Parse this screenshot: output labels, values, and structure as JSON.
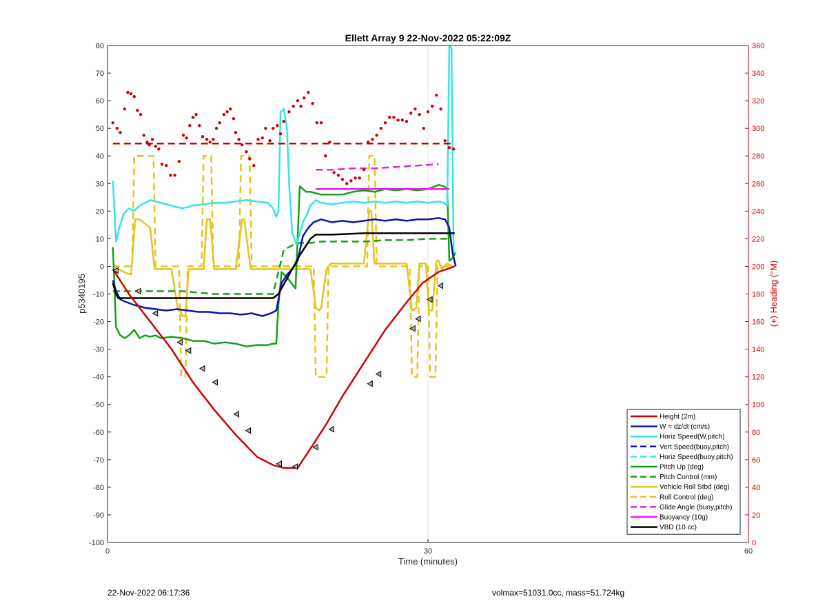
{
  "footer": {
    "date": "22-Nov-2022 06:17:36",
    "info": "volmax=51031.0cc, mass=51.724kg"
  },
  "colors": {
    "red": "#cc0000",
    "blue": "#0a14b4",
    "cyan": "#32e6e6",
    "green": "#14a014",
    "yellow": "#e6c31e",
    "magenta": "#e61ee6",
    "black": "#000000"
  },
  "chart_data": {
    "type": "line",
    "title": "Ellett Array 9 22-Nov-2022 05:22:09Z",
    "xlabel": "Time (minutes)",
    "ylabel": "p5340195",
    "y2label": "(+) Heading (°M)",
    "xlim": [
      0,
      60
    ],
    "ylim": [
      -100,
      80
    ],
    "y2lim": [
      0,
      360
    ],
    "xticks": [
      0,
      30,
      60
    ],
    "yticks": [
      80,
      70,
      60,
      50,
      40,
      30,
      20,
      10,
      0,
      -10,
      -20,
      -30,
      -40,
      -50,
      -60,
      -70,
      -80,
      -90,
      -100
    ],
    "y2ticks": [
      360,
      340,
      320,
      300,
      280,
      260,
      240,
      220,
      200,
      180,
      160,
      140,
      120,
      100,
      80,
      60,
      40,
      20,
      0
    ],
    "grid": "x only",
    "legend_position": "lower-right",
    "legend": [
      "Height (2m)",
      "W = dz/dt (cm/s)",
      "Horiz Speed(W,pitch)",
      "Vert Speed(buoy,pitch)",
      "Horiz Speed(buoy,pitch)",
      "Pitch Up (deg)",
      "Pitch Control (mm)",
      "Vehicle Roll Stbd (deg)",
      "Roll Control (deg)",
      "Glide Angle (buoy,pitch)",
      "Buoyancy (10g)",
      "VBD (10 cc)"
    ],
    "series": [
      {
        "name": "Height (2m)",
        "color": "red",
        "style": "solid",
        "x": [
          0.5,
          2,
          4,
          6,
          7,
          8,
          10,
          12,
          14,
          15.5,
          16.5,
          17.8,
          19,
          20.5,
          22,
          24,
          26,
          28,
          29.5,
          31,
          32.5
        ],
        "y": [
          -1,
          -10,
          -20,
          -30,
          -36,
          -42,
          -52,
          -61,
          -69,
          -72,
          -73,
          -73,
          -66,
          -57,
          -47,
          -35,
          -23,
          -13,
          -6,
          -2,
          0
        ]
      },
      {
        "name": "Height markers",
        "color": "red",
        "style": "markers",
        "x": [
          0.8,
          2.9,
          4.5,
          6.8,
          7.6,
          8.9,
          10.1,
          12.1,
          13.2,
          16.1,
          17.6,
          19.5,
          21,
          24.6,
          25.4,
          28.6,
          29.1,
          30.2,
          31.2
        ],
        "y": [
          -1.5,
          -9,
          -17,
          -27.5,
          -30.5,
          -37,
          -42,
          -53.5,
          -59.5,
          -71.5,
          -72.5,
          -65.5,
          -59,
          -42.5,
          -39,
          -22.5,
          -19,
          -12,
          -7
        ]
      },
      {
        "name": "Heading (°M)",
        "axis": "right",
        "color": "red",
        "style": "dots",
        "x": [
          0.5,
          0.9,
          1.2,
          1.6,
          1.9,
          2.2,
          2.5,
          2.8,
          3.1,
          3.4,
          3.7,
          3.9,
          4.2,
          4.5,
          4.8,
          5.1,
          5.5,
          5.9,
          6.3,
          6.7,
          7.1,
          7.4,
          7.7,
          8.0,
          8.3,
          8.6,
          8.9,
          9.3,
          9.6,
          9.9,
          10.2,
          10.5,
          10.9,
          11.2,
          11.5,
          11.8,
          12.0,
          12.3,
          12.6,
          13.0,
          13.3,
          13.7,
          14.1,
          14.5,
          14.8,
          15.2,
          15.5,
          15.9,
          16.2,
          16.5,
          17.0,
          17.4,
          17.8,
          18.1,
          18.4,
          18.8,
          19.2,
          19.6,
          20.0,
          20.4,
          20.8,
          21.2,
          21.6,
          22.0,
          22.4,
          22.8,
          23.2,
          23.6,
          24.0,
          24.4,
          24.8,
          25.2,
          25.6,
          26.0,
          26.4,
          26.8,
          27.2,
          27.6,
          28.0,
          28.4,
          28.8,
          29.2,
          29.6,
          30.0,
          30.4,
          30.8,
          31.2,
          31.6,
          32.0,
          32.4
        ],
        "y": [
          304,
          300,
          297,
          314,
          326,
          325,
          323,
          313,
          310,
          295,
          290,
          288,
          292,
          287,
          285,
          274,
          273,
          266,
          266,
          276,
          295,
          293,
          302,
          308,
          310,
          302,
          294,
          292,
          290,
          292,
          300,
          304,
          310,
          312,
          314,
          307,
          297,
          292,
          288,
          283,
          278,
          273,
          292,
          293,
          300,
          291,
          300,
          302,
          296,
          305,
          312,
          316,
          320,
          316,
          322,
          326,
          318,
          304,
          304,
          280,
          290,
          268,
          266,
          263,
          260,
          262,
          264,
          264,
          270,
          290,
          292,
          295,
          300,
          304,
          308,
          308,
          306,
          306,
          305,
          311,
          314,
          310,
          300,
          312,
          316,
          324,
          314,
          291,
          286,
          285
        ]
      },
      {
        "name": "Mean Heading",
        "axis": "right",
        "color": "red",
        "style": "dashed",
        "x": [
          0.5,
          32.5
        ],
        "y": [
          289,
          289
        ]
      },
      {
        "name": "W = dz/dt (cm/s)",
        "color": "blue",
        "style": "solid",
        "x": [
          0.5,
          0.8,
          1.2,
          1.8,
          2.5,
          3.5,
          4.5,
          5.5,
          6.5,
          7.5,
          8.5,
          9.5,
          10.5,
          11.5,
          12.5,
          13.5,
          14.5,
          15.3,
          15.8,
          16.3,
          16.8,
          17.3,
          17.8,
          18.3,
          18.8,
          19.3,
          20.0,
          21.0,
          22.0,
          23.0,
          24.0,
          25.0,
          26.0,
          27.0,
          28.0,
          29.0,
          30.0,
          31.0,
          31.6,
          32.0,
          32.3,
          32.6
        ],
        "y": [
          -5,
          -9,
          -12,
          -13,
          -14,
          -15,
          -15.5,
          -16,
          -15.5,
          -16,
          -16.5,
          -16.5,
          -17,
          -17,
          -17.5,
          -17,
          -18,
          -17,
          -16,
          -6,
          -3,
          -1,
          2,
          11,
          14,
          16,
          17,
          16,
          16.5,
          16,
          16.5,
          17,
          16.5,
          17,
          16.5,
          17,
          17,
          17.5,
          17,
          14,
          5,
          0
        ]
      },
      {
        "name": "Horiz Speed(W,pitch)",
        "color": "cyan",
        "style": "solid",
        "x": [
          0.5,
          0.8,
          1.1,
          1.5,
          2.0,
          2.5,
          3.0,
          3.5,
          4.0,
          5.0,
          6.0,
          7.0,
          8.0,
          9.0,
          10.0,
          11.0,
          12.0,
          13.0,
          14.0,
          15.0,
          15.5,
          15.8,
          16.0,
          16.2,
          16.5,
          16.8,
          17.0,
          17.3,
          17.7,
          18.0,
          18.3,
          18.7,
          19.0,
          19.5,
          20.0,
          21.0,
          22.0,
          23.0,
          24.0,
          25.0,
          26.0,
          27.0,
          28.0,
          29.0,
          30.0,
          31.0,
          31.5,
          31.8,
          32.0,
          32.2,
          32.4,
          32.6
        ],
        "y": [
          31,
          9,
          14,
          19,
          21,
          20,
          22,
          23,
          24,
          23,
          22,
          21,
          22,
          22.5,
          23,
          23,
          23.5,
          24,
          23.5,
          23,
          21,
          18,
          20,
          56,
          57,
          50,
          30,
          12,
          8,
          12,
          16,
          19,
          22,
          24,
          23,
          22.5,
          23,
          23.5,
          23,
          23.5,
          23,
          23.5,
          23,
          23.5,
          23,
          23.5,
          23,
          22,
          80,
          79,
          5,
          5
        ]
      },
      {
        "name": "Pitch Up (deg)",
        "color": "green",
        "style": "solid",
        "x": [
          0.5,
          0.8,
          1.2,
          1.6,
          2.0,
          2.5,
          3.0,
          3.5,
          4.0,
          4.5,
          5.0,
          6.0,
          7.0,
          8.0,
          9.0,
          10.0,
          11.0,
          12.0,
          13.0,
          14.0,
          15.0,
          15.5,
          15.8,
          16.0,
          16.3,
          16.8,
          17.2,
          17.6,
          18.0,
          18.3,
          18.6,
          19.0,
          20.0,
          21.0,
          22.0,
          23.0,
          24.0,
          25.0,
          26.0,
          27.0,
          28.0,
          29.0,
          30.0,
          31.0,
          31.5,
          31.8,
          32.0,
          32.3,
          32.6
        ],
        "y": [
          7,
          -22,
          -25,
          -26,
          -25,
          -23,
          -26,
          -25,
          -25.5,
          -25,
          -26,
          -25.5,
          -26,
          -27,
          -27,
          -28,
          -27.5,
          -28,
          -29,
          -28.5,
          -28.5,
          -28,
          -28,
          -14,
          -2,
          -4,
          -6,
          -8,
          29,
          28,
          27,
          27,
          26,
          26,
          26,
          27,
          27.5,
          27,
          28,
          27.5,
          28,
          27.5,
          28,
          29.5,
          29,
          28,
          2,
          3,
          5
        ]
      },
      {
        "name": "Pitch Control (mm)",
        "color": "green",
        "style": "dashed",
        "x": [
          0.5,
          3,
          5,
          7,
          8.5,
          10,
          12,
          14,
          15.5,
          16.0,
          16.5,
          17.5,
          18.0,
          19.0,
          20.0,
          22.0,
          24.0,
          26.0,
          28.0,
          30.0,
          32.0
        ],
        "y": [
          -9,
          -9,
          -9,
          -9,
          -9.5,
          -10,
          -10,
          -10,
          -10,
          -2,
          6,
          8,
          8.5,
          8.5,
          9,
          9,
          9,
          9.5,
          9.5,
          10,
          10
        ]
      },
      {
        "name": "Vehicle Roll Stbd (deg)",
        "color": "yellow",
        "style": "solid",
        "x": [
          0.5,
          1.5,
          2.2,
          2.6,
          3.0,
          4.0,
          4.4,
          4.6,
          5.0,
          6.0,
          6.6,
          6.8,
          7.0,
          7.3,
          7.6,
          8.0,
          9.0,
          9.3,
          9.6,
          10.0,
          10.4,
          10.6,
          11.0,
          12.0,
          12.6,
          12.8,
          13.4,
          13.6,
          14.0,
          15.0,
          16.0,
          17.0,
          18.0,
          19.0,
          19.5,
          19.8,
          20.0,
          20.5,
          20.9,
          21.1,
          22.0,
          23.0,
          24.0,
          24.5,
          24.7,
          25.0,
          25.3,
          25.6,
          26.0,
          27.0,
          28.0,
          28.5,
          28.6,
          28.9,
          29.2,
          29.5,
          29.8,
          30.1,
          30.4,
          30.8,
          31.0,
          31.3,
          31.8,
          32.3
        ],
        "y": [
          0,
          -2,
          -3,
          17,
          17,
          14,
          -1,
          -1,
          -1,
          -1,
          -16,
          -16,
          -18,
          -18,
          -1,
          -1,
          -1,
          17,
          17,
          -1,
          -1,
          -1,
          -1,
          -1,
          17,
          17,
          -1,
          -1,
          -1,
          -1,
          -1,
          -1,
          -1,
          -1,
          -15,
          -16,
          -15,
          -1,
          1,
          1,
          1,
          1,
          1,
          20,
          20,
          1,
          1,
          1,
          1,
          1,
          1,
          -16,
          -16,
          -15,
          1,
          1,
          1,
          -16,
          -16,
          2,
          2,
          -1,
          1,
          0
        ]
      },
      {
        "name": "Roll Control (deg)",
        "color": "yellow",
        "style": "dashed",
        "x": [
          0.5,
          2.3,
          2.5,
          4.3,
          4.5,
          6.7,
          6.9,
          7.3,
          7.5,
          8.8,
          9.0,
          9.7,
          9.9,
          12.3,
          12.5,
          13.3,
          13.5,
          19.3,
          19.5,
          20.5,
          20.7,
          24.3,
          24.5,
          25.0,
          25.2,
          28.3,
          28.5,
          29.0,
          29.2,
          30.0,
          30.2,
          30.7,
          30.9,
          32.5
        ],
        "y": [
          0,
          0,
          40,
          40,
          0,
          0,
          -40,
          -40,
          0,
          0,
          40,
          40,
          0,
          0,
          40,
          40,
          0,
          0,
          -40,
          -40,
          0,
          0,
          40,
          40,
          0,
          0,
          -40,
          -40,
          0,
          0,
          -40,
          -40,
          0,
          0
        ]
      },
      {
        "name": "Glide Angle (buoy,pitch)",
        "color": "magenta",
        "style": "dashed",
        "x": [
          19.5,
          21,
          23,
          25,
          27,
          29,
          31
        ],
        "y": [
          35,
          35,
          35.5,
          35.5,
          36,
          36.5,
          37
        ]
      },
      {
        "name": "Buoyancy (10g)",
        "color": "magenta",
        "style": "solid",
        "x": [
          19.5,
          32
        ],
        "y": [
          28,
          28
        ]
      },
      {
        "name": "VBD (10 cc)",
        "color": "black",
        "style": "solid",
        "x": [
          0.5,
          0.8,
          1.0,
          3,
          6,
          9,
          12,
          14,
          15.5,
          16.0,
          17.0,
          18.0,
          19.0,
          19.5,
          21,
          24,
          27,
          30,
          32.5
        ],
        "y": [
          -6,
          -10,
          -11.5,
          -11.5,
          -11.5,
          -11.5,
          -11.5,
          -11.5,
          -11.5,
          -10,
          -3,
          4,
          10,
          11.5,
          11.5,
          12,
          12,
          12,
          12
        ]
      }
    ]
  }
}
